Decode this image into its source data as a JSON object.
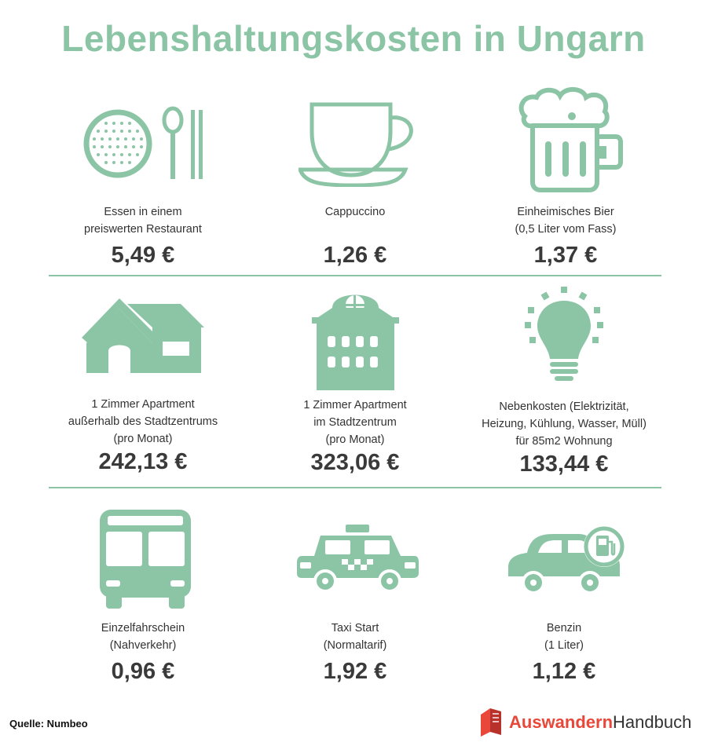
{
  "title": "Lebenshaltungskosten in Ungarn",
  "colors": {
    "accent": "#8cc5a5",
    "brand_red": "#e8473a"
  },
  "items": [
    {
      "icon": "plate-cutlery-icon",
      "label": [
        "Essen in einem",
        "preiswerten Restaurant"
      ],
      "price": "5,49 €"
    },
    {
      "icon": "coffee-cup-icon",
      "label": [
        "Cappuccino"
      ],
      "price": "1,26 €"
    },
    {
      "icon": "beer-mug-icon",
      "label": [
        "Einheimisches Bier",
        "(0,5 Liter vom Fass)"
      ],
      "price": "1,37 €"
    },
    {
      "icon": "house-icon",
      "label": [
        "1 Zimmer Apartment",
        "außerhalb des Stadtzentrums",
        "(pro Monat)"
      ],
      "price": "242,13 €"
    },
    {
      "icon": "apartment-building-icon",
      "label": [
        "1 Zimmer Apartment",
        "im Stadtzentrum",
        "(pro Monat)"
      ],
      "price": "323,06 €"
    },
    {
      "icon": "light-bulb-icon",
      "label": [
        "Nebenkosten (Elektrizität,",
        "Heizung, Kühlung, Wasser, Müll)",
        "für 85m2 Wohnung"
      ],
      "price": "133,44 €"
    },
    {
      "icon": "bus-icon",
      "label": [
        "Einzelfahrschein",
        "(Nahverkehr)"
      ],
      "price": "0,96 €"
    },
    {
      "icon": "taxi-icon",
      "label": [
        "Taxi Start",
        "(Normaltarif)"
      ],
      "price": "1,92 €"
    },
    {
      "icon": "car-fuel-icon",
      "label": [
        "Benzin",
        "(1 Liter)"
      ],
      "price": "1,12 €"
    }
  ],
  "source": "Quelle: Numbeo",
  "brand": {
    "part1": "Auswandern",
    "part2": "Handbuch"
  }
}
